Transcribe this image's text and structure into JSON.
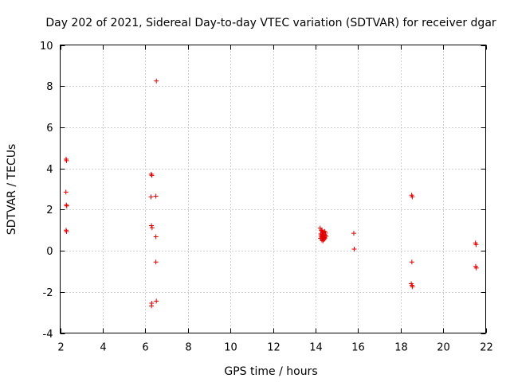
{
  "chart_data": {
    "type": "scatter",
    "title": "Day 202 of 2021, Sidereal Day-to-day VTEC variation (SDTVAR) for receiver dgar",
    "xlabel": "GPS time / hours",
    "ylabel": "SDTVAR / TECUs",
    "xlim": [
      2,
      22
    ],
    "ylim": [
      -4,
      10
    ],
    "xticks": [
      2,
      4,
      6,
      8,
      10,
      12,
      14,
      16,
      18,
      20,
      22
    ],
    "yticks": [
      -4,
      -2,
      0,
      2,
      4,
      6,
      8,
      10
    ],
    "xtick_labels": [
      "2",
      "4",
      "6",
      "8",
      "10",
      "12",
      "14",
      "16",
      "18",
      "20",
      "22"
    ],
    "ytick_labels": [
      "-4",
      "-2",
      "0",
      "2",
      "4",
      "6",
      "8",
      "10"
    ],
    "grid": true,
    "marker": "+",
    "color": "#e00000",
    "series": [
      {
        "name": "dgar",
        "points": [
          [
            2.28,
            4.45
          ],
          [
            2.3,
            4.38
          ],
          [
            2.27,
            2.85
          ],
          [
            2.29,
            2.22
          ],
          [
            2.31,
            2.18
          ],
          [
            2.28,
            1.0
          ],
          [
            2.3,
            0.93
          ],
          [
            6.28,
            3.72
          ],
          [
            6.31,
            3.66
          ],
          [
            6.27,
            2.62
          ],
          [
            6.5,
            2.65
          ],
          [
            6.29,
            1.22
          ],
          [
            6.32,
            1.12
          ],
          [
            6.5,
            0.68
          ],
          [
            6.52,
            8.25
          ],
          [
            6.5,
            -0.55
          ],
          [
            6.3,
            -2.55
          ],
          [
            6.29,
            -2.68
          ],
          [
            6.52,
            -2.45
          ],
          [
            14.22,
            1.1
          ],
          [
            14.27,
            1.0
          ],
          [
            14.31,
            0.96
          ],
          [
            14.35,
            0.9
          ],
          [
            14.4,
            0.85
          ],
          [
            14.25,
            0.82
          ],
          [
            14.3,
            0.78
          ],
          [
            14.36,
            0.74
          ],
          [
            14.42,
            0.7
          ],
          [
            14.46,
            0.76
          ],
          [
            14.28,
            0.66
          ],
          [
            14.33,
            0.62
          ],
          [
            14.39,
            0.58
          ],
          [
            14.45,
            0.62
          ],
          [
            14.5,
            0.7
          ],
          [
            14.3,
            0.52
          ],
          [
            14.35,
            0.48
          ],
          [
            14.4,
            0.55
          ],
          [
            14.47,
            0.86
          ],
          [
            14.24,
            0.6
          ],
          [
            14.38,
            0.92
          ],
          [
            14.44,
            0.94
          ],
          [
            14.32,
            0.88
          ],
          [
            14.26,
            0.72
          ],
          [
            14.41,
            0.64
          ],
          [
            15.8,
            0.85
          ],
          [
            15.82,
            0.08
          ],
          [
            18.52,
            2.7
          ],
          [
            18.55,
            2.62
          ],
          [
            18.53,
            -0.55
          ],
          [
            18.5,
            -1.6
          ],
          [
            18.54,
            -1.68
          ],
          [
            18.56,
            -1.75
          ],
          [
            21.52,
            0.38
          ],
          [
            21.55,
            0.3
          ],
          [
            21.53,
            -0.76
          ],
          [
            21.56,
            -0.84
          ]
        ]
      }
    ]
  }
}
